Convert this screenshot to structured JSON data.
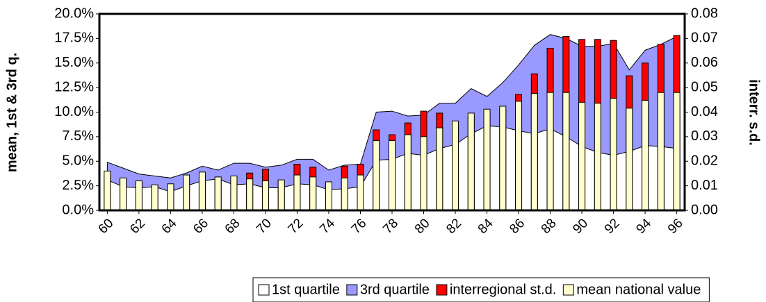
{
  "chart_data": {
    "type": "combo",
    "y_label": "mean, 1st & 3rd q.",
    "y2_label": "interr. s.d.",
    "categories": [
      "60",
      null,
      "62",
      null,
      "64",
      null,
      "66",
      null,
      "68",
      null,
      "70",
      null,
      "72",
      null,
      "74",
      null,
      "76",
      null,
      "78",
      null,
      "80",
      null,
      "82",
      null,
      "84",
      null,
      "86",
      null,
      "88",
      null,
      "90",
      null,
      "92",
      null,
      "94",
      null,
      "96"
    ],
    "series": [
      {
        "name": "3rd quartile",
        "type": "area",
        "axis": "y",
        "color": "#9999ff",
        "values": [
          4.9,
          4.3,
          3.7,
          3.5,
          3.3,
          3.8,
          4.5,
          4.1,
          4.8,
          4.8,
          4.4,
          4.6,
          5.2,
          5.2,
          4.1,
          4.6,
          4.7,
          10.0,
          10.1,
          9.6,
          9.7,
          10.9,
          10.9,
          12.4,
          11.6,
          13.0,
          14.8,
          16.8,
          17.9,
          17.5,
          16.7,
          16.7,
          17.0,
          14.3,
          16.3,
          16.9,
          17.7
        ]
      },
      {
        "name": "1st quartile",
        "type": "area",
        "axis": "y",
        "color": "#ffffff",
        "values": [
          3.1,
          2.4,
          2.3,
          2.4,
          1.9,
          2.5,
          3.0,
          3.2,
          2.6,
          2.7,
          2.3,
          2.3,
          2.7,
          2.6,
          2.1,
          2.2,
          2.4,
          5.1,
          5.2,
          5.8,
          5.6,
          6.3,
          6.7,
          7.8,
          8.6,
          8.5,
          8.1,
          7.8,
          8.3,
          7.5,
          6.5,
          5.9,
          5.6,
          6.0,
          6.6,
          6.5,
          6.3
        ]
      },
      {
        "name": "interregional st.d.",
        "type": "bar",
        "axis": "y2",
        "color": "#ff0000",
        "values": [
          0.014,
          0.012,
          0.011,
          0.01,
          0.01,
          0.013,
          0.014,
          0.012,
          0.013,
          0.0152,
          0.0168,
          0.012,
          0.0188,
          0.0176,
          0.011,
          0.018,
          0.0188,
          0.0328,
          0.0308,
          0.0356,
          0.0404,
          0.0396,
          0.034,
          0.038,
          0.04,
          0.041,
          0.0472,
          0.0556,
          0.066,
          0.0708,
          0.0696,
          0.0696,
          0.0692,
          0.0548,
          0.06,
          0.0676,
          0.0712
        ]
      },
      {
        "name": "mean national value",
        "type": "bar",
        "axis": "y",
        "color": "#ffffcc",
        "values": [
          4.0,
          3.3,
          3.0,
          2.6,
          2.7,
          3.6,
          3.9,
          3.4,
          3.5,
          3.2,
          3.0,
          3.1,
          3.6,
          3.4,
          2.9,
          3.3,
          3.6,
          7.1,
          7.1,
          7.7,
          7.5,
          8.4,
          9.1,
          9.9,
          10.3,
          10.6,
          11.1,
          11.9,
          12.0,
          12.0,
          11.0,
          10.9,
          11.4,
          10.4,
          11.2,
          12.0,
          12.0
        ]
      }
    ],
    "ylim": [
      0,
      20
    ],
    "yticks": [
      {
        "value": 0,
        "label": "0.0%"
      },
      {
        "value": 2.5,
        "label": "2.5%"
      },
      {
        "value": 5,
        "label": "5.0%"
      },
      {
        "value": 7.5,
        "label": "7.5%"
      },
      {
        "value": 10,
        "label": "10.0%"
      },
      {
        "value": 12.5,
        "label": "12.5%"
      },
      {
        "value": 15,
        "label": "15.0%"
      },
      {
        "value": 17.5,
        "label": "17.5%"
      },
      {
        "value": 20,
        "label": "20.0%"
      }
    ],
    "y2lim": [
      0,
      0.08
    ],
    "y2ticks": [
      {
        "value": 0,
        "label": "0.00"
      },
      {
        "value": 0.01,
        "label": "0.01"
      },
      {
        "value": 0.02,
        "label": "0.02"
      },
      {
        "value": 0.03,
        "label": "0.03"
      },
      {
        "value": 0.04,
        "label": "0.04"
      },
      {
        "value": 0.05,
        "label": "0.05"
      },
      {
        "value": 0.06,
        "label": "0.06"
      },
      {
        "value": 0.07,
        "label": "0.07"
      },
      {
        "value": 0.08,
        "label": "0.08"
      }
    ],
    "legend": "bottom",
    "legend_order": [
      1,
      0,
      2,
      3
    ]
  }
}
